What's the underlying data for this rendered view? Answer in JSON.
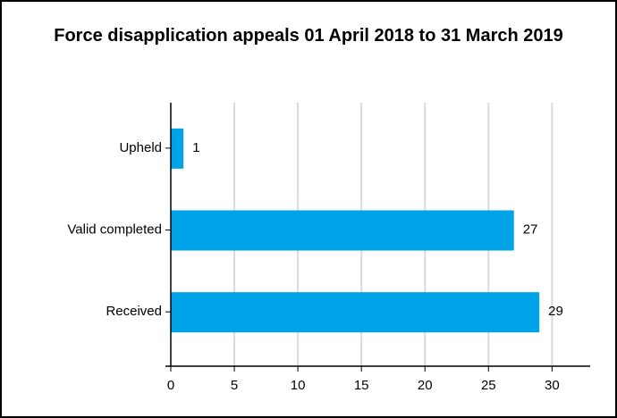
{
  "chart_data": {
    "type": "bar",
    "orientation": "horizontal",
    "title": "Force disapplication appeals 01 April 2018 to 31 March 2019",
    "categories": [
      "Upheld",
      "Valid completed",
      "Received"
    ],
    "values": [
      1,
      27,
      29
    ],
    "color": "#00a3e8",
    "xlim": [
      0,
      33
    ],
    "xticks": [
      0,
      5,
      10,
      15,
      20,
      25,
      30
    ],
    "grid": true
  }
}
